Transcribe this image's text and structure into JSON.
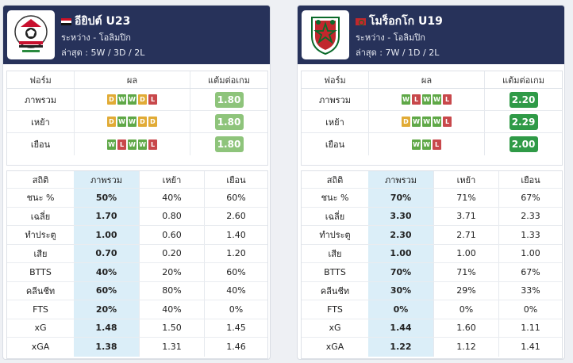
{
  "teams": [
    {
      "name": "อียิปต์ U23",
      "flag": "egypt",
      "competition": "ระหว่าง - โอลิมปิก",
      "recent": "ล่าสุด : 5W / 3D / 2L",
      "form_header": [
        "ฟอร์ม",
        "ผล",
        "แต้มต่อเกม"
      ],
      "form_rows": [
        {
          "label": "ภาพรวม",
          "results": [
            "D",
            "W",
            "W",
            "D",
            "L"
          ],
          "ppg": "1.80",
          "tone": "light"
        },
        {
          "label": "เหย้า",
          "results": [
            "D",
            "W",
            "W",
            "D",
            "D"
          ],
          "ppg": "1.80",
          "tone": "light"
        },
        {
          "label": "เยือน",
          "results": [
            "W",
            "L",
            "W",
            "W",
            "L"
          ],
          "ppg": "1.80",
          "tone": "light"
        }
      ],
      "stats_header": [
        "สถิติ",
        "ภาพรวม",
        "เหย้า",
        "เยือน"
      ],
      "stats_rows": [
        [
          "ชนะ %",
          "50%",
          "40%",
          "60%"
        ],
        [
          "เฉลี่ย",
          "1.70",
          "0.80",
          "2.60"
        ],
        [
          "ทำประตู",
          "1.00",
          "0.60",
          "1.40"
        ],
        [
          "เสีย",
          "0.70",
          "0.20",
          "1.20"
        ],
        [
          "BTTS",
          "40%",
          "20%",
          "60%"
        ],
        [
          "คลีนชีท",
          "60%",
          "80%",
          "40%"
        ],
        [
          "FTS",
          "20%",
          "40%",
          "0%"
        ],
        [
          "xG",
          "1.48",
          "1.50",
          "1.45"
        ],
        [
          "xGA",
          "1.38",
          "1.31",
          "1.46"
        ]
      ]
    },
    {
      "name": "โมร็อกโก U19",
      "flag": "morocco",
      "competition": "ระหว่าง - โอลิมปิก",
      "recent": "ล่าสุด : 7W / 1D / 2L",
      "form_header": [
        "ฟอร์ม",
        "ผล",
        "แต้มต่อเกม"
      ],
      "form_rows": [
        {
          "label": "ภาพรวม",
          "results": [
            "W",
            "L",
            "W",
            "W",
            "L"
          ],
          "ppg": "2.20",
          "tone": "dark"
        },
        {
          "label": "เหย้า",
          "results": [
            "D",
            "W",
            "W",
            "W",
            "L"
          ],
          "ppg": "2.29",
          "tone": "dark"
        },
        {
          "label": "เยือน",
          "results": [
            "W",
            "W",
            "L"
          ],
          "ppg": "2.00",
          "tone": "dark"
        }
      ],
      "stats_header": [
        "สถิติ",
        "ภาพรวม",
        "เหย้า",
        "เยือน"
      ],
      "stats_rows": [
        [
          "ชนะ %",
          "70%",
          "71%",
          "67%"
        ],
        [
          "เฉลี่ย",
          "3.30",
          "3.71",
          "2.33"
        ],
        [
          "ทำประตู",
          "2.30",
          "2.71",
          "1.33"
        ],
        [
          "เสีย",
          "1.00",
          "1.00",
          "1.00"
        ],
        [
          "BTTS",
          "70%",
          "71%",
          "67%"
        ],
        [
          "คลีนชีท",
          "30%",
          "29%",
          "33%"
        ],
        [
          "FTS",
          "0%",
          "0%",
          "0%"
        ],
        [
          "xG",
          "1.44",
          "1.60",
          "1.11"
        ],
        [
          "xGA",
          "1.22",
          "1.12",
          "1.41"
        ]
      ]
    }
  ],
  "colors": {
    "header_bg": "#27325a",
    "win": "#5fa847",
    "draw": "#e1ab36",
    "loss": "#c8484b",
    "ppg_light": "#8ec47b",
    "ppg_dark": "#2f9a47",
    "highlight_col": "#dbeef8"
  }
}
